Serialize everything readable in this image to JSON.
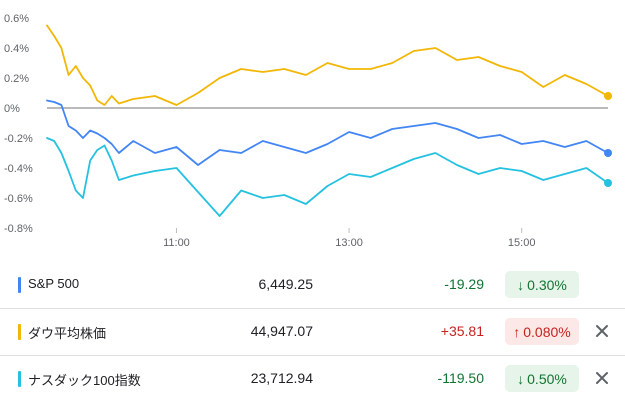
{
  "chart_data": {
    "type": "line",
    "ylim": [
      -0.8,
      0.6
    ],
    "yticks": [
      "0.6%",
      "0.4%",
      "0.2%",
      "0%",
      "-0.2%",
      "-0.4%",
      "-0.6%",
      "-0.8%"
    ],
    "xticks": [
      "11:00",
      "13:00",
      "15:00"
    ],
    "x": [
      "09:30",
      "09:35",
      "09:40",
      "09:45",
      "09:50",
      "09:55",
      "10:00",
      "10:05",
      "10:10",
      "10:15",
      "10:20",
      "10:30",
      "10:45",
      "11:00",
      "11:15",
      "11:30",
      "11:45",
      "12:00",
      "12:15",
      "12:30",
      "12:45",
      "13:00",
      "13:15",
      "13:30",
      "13:45",
      "14:00",
      "14:15",
      "14:30",
      "14:45",
      "15:00",
      "15:15",
      "15:30",
      "15:45",
      "16:00"
    ],
    "series": [
      {
        "color": "#f2b705",
        "values": [
          0.55,
          0.48,
          0.4,
          0.22,
          0.28,
          0.2,
          0.15,
          0.05,
          0.02,
          0.08,
          0.03,
          0.06,
          0.08,
          0.02,
          0.1,
          0.2,
          0.26,
          0.24,
          0.26,
          0.22,
          0.3,
          0.26,
          0.26,
          0.3,
          0.38,
          0.4,
          0.32,
          0.34,
          0.28,
          0.24,
          0.14,
          0.22,
          0.16,
          0.08
        ]
      },
      {
        "color": "#4285f4",
        "values": [
          0.05,
          0.04,
          0.02,
          -0.12,
          -0.15,
          -0.2,
          -0.15,
          -0.17,
          -0.2,
          -0.24,
          -0.3,
          -0.22,
          -0.3,
          -0.26,
          -0.38,
          -0.28,
          -0.3,
          -0.22,
          -0.26,
          -0.3,
          -0.24,
          -0.16,
          -0.2,
          -0.14,
          -0.12,
          -0.1,
          -0.14,
          -0.2,
          -0.18,
          -0.24,
          -0.22,
          -0.26,
          -0.22,
          -0.3
        ]
      },
      {
        "color": "#24c1e0",
        "values": [
          -0.2,
          -0.22,
          -0.3,
          -0.42,
          -0.55,
          -0.6,
          -0.35,
          -0.28,
          -0.25,
          -0.35,
          -0.48,
          -0.45,
          -0.42,
          -0.4,
          -0.56,
          -0.72,
          -0.55,
          -0.6,
          -0.58,
          -0.64,
          -0.52,
          -0.44,
          -0.46,
          -0.4,
          -0.34,
          -0.3,
          -0.38,
          -0.44,
          -0.4,
          -0.42,
          -0.48,
          -0.44,
          -0.4,
          -0.5
        ]
      }
    ]
  },
  "rows": [
    {
      "name": "S&P 500",
      "price": "6,449.25",
      "change": "-19.29",
      "pct": "0.30%",
      "arrow": "↓",
      "dir": "down",
      "color": "#4285f4",
      "closable": false
    },
    {
      "name": "ダウ平均株価",
      "price": "44,947.07",
      "change": "+35.81",
      "pct": "0.080%",
      "arrow": "↑",
      "dir": "up",
      "color": "#f2b705",
      "closable": true
    },
    {
      "name": "ナスダック100指数",
      "price": "23,712.94",
      "change": "-119.50",
      "pct": "0.50%",
      "arrow": "↓",
      "dir": "down",
      "color": "#24c1e0",
      "closable": true
    }
  ]
}
